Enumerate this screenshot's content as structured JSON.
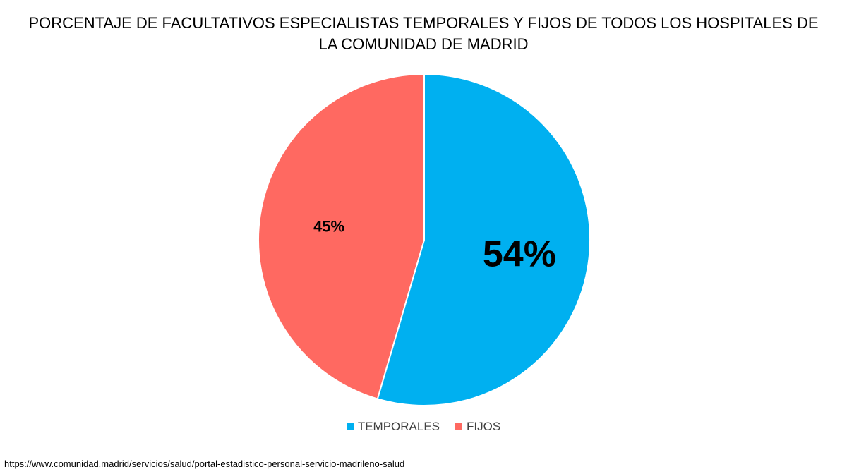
{
  "chart_data": {
    "type": "pie",
    "title": "PORCENTAJE DE FACULTATIVOS ESPECIALISTAS TEMPORALES Y FIJOS DE TODOS LOS HOSPITALES DE LA COMUNIDAD DE MADRID",
    "slices": [
      {
        "label": "TEMPORALES",
        "value": 54,
        "display": "54%",
        "color": "#00B0F0"
      },
      {
        "label": "FIJOS",
        "value": 45,
        "display": "45%",
        "color": "#FF6961"
      }
    ],
    "legend_position": "bottom"
  },
  "source_text": "https://www.comunidad.madrid/servicios/salud/portal-estadistico-personal-servicio-madrileno-salud"
}
